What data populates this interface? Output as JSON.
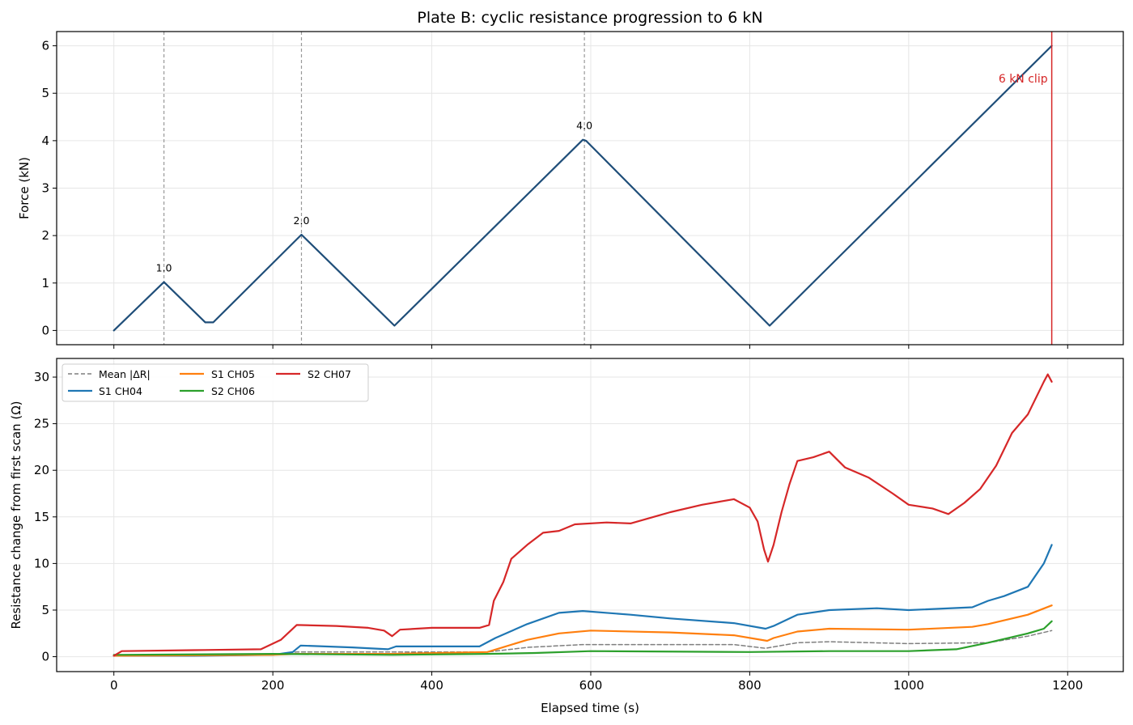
{
  "chart_data": [
    {
      "type": "line",
      "title": "Plate B: cyclic resistance progression to 6 kN",
      "xlabel": "",
      "ylabel": "Force (kN)",
      "xlim": [
        -72,
        1270
      ],
      "ylim": [
        -0.3,
        6.3
      ],
      "x_ticks": [
        0,
        200,
        400,
        600,
        800,
        1000,
        1200
      ],
      "y_ticks": [
        0,
        1,
        2,
        3,
        4,
        5,
        6
      ],
      "grid": true,
      "series": [
        {
          "color": "#1f4e79",
          "points": [
            [
              0,
              0.0
            ],
            [
              63,
              1.02
            ],
            [
              115,
              0.17
            ],
            [
              125,
              0.17
            ],
            [
              236,
              2.02
            ],
            [
              353,
              0.1
            ],
            [
              590,
              4.02
            ],
            [
              594,
              4.0
            ],
            [
              825,
              0.1
            ],
            [
              1180,
              6.0
            ]
          ]
        }
      ],
      "peaks": [
        {
          "x": 63,
          "y": 1.02,
          "label": "1.0"
        },
        {
          "x": 236,
          "y": 2.02,
          "label": "2.0"
        },
        {
          "x": 592,
          "y": 4.02,
          "label": "4.0"
        }
      ],
      "clip_marker": {
        "x": 1180,
        "label": "6 kN clip",
        "color": "#d62728"
      }
    },
    {
      "type": "line",
      "xlabel": "Elapsed time (s)",
      "ylabel": "Resistance change from first scan (Ω)",
      "xlim": [
        -72,
        1270
      ],
      "ylim": [
        -1.6,
        32.0
      ],
      "x_ticks": [
        0,
        200,
        400,
        600,
        800,
        1000,
        1200
      ],
      "y_ticks": [
        0,
        5,
        10,
        15,
        20,
        25,
        30
      ],
      "grid": true,
      "legend_position": "top-left",
      "series": [
        {
          "name": "Mean |ΔR|",
          "color": "#7f7f7f",
          "dashed": true,
          "points": [
            [
              0,
              0.1
            ],
            [
              200,
              0.2
            ],
            [
              230,
              0.5
            ],
            [
              350,
              0.5
            ],
            [
              470,
              0.5
            ],
            [
              520,
              1.0
            ],
            [
              590,
              1.3
            ],
            [
              700,
              1.3
            ],
            [
              780,
              1.3
            ],
            [
              820,
              0.9
            ],
            [
              860,
              1.5
            ],
            [
              900,
              1.6
            ],
            [
              1000,
              1.4
            ],
            [
              1100,
              1.5
            ],
            [
              1150,
              2.2
            ],
            [
              1180,
              2.8
            ]
          ]
        },
        {
          "name": "S1 CH04",
          "color": "#1f77b4",
          "points": [
            [
              0,
              0.1
            ],
            [
              100,
              0.1
            ],
            [
              200,
              0.2
            ],
            [
              225,
              0.5
            ],
            [
              235,
              1.2
            ],
            [
              300,
              1.0
            ],
            [
              345,
              0.8
            ],
            [
              355,
              1.1
            ],
            [
              460,
              1.1
            ],
            [
              480,
              2.0
            ],
            [
              520,
              3.5
            ],
            [
              560,
              4.7
            ],
            [
              590,
              4.9
            ],
            [
              650,
              4.5
            ],
            [
              700,
              4.1
            ],
            [
              780,
              3.6
            ],
            [
              820,
              3.0
            ],
            [
              830,
              3.3
            ],
            [
              860,
              4.5
            ],
            [
              900,
              5.0
            ],
            [
              960,
              5.2
            ],
            [
              1000,
              5.0
            ],
            [
              1080,
              5.3
            ],
            [
              1100,
              6.0
            ],
            [
              1120,
              6.5
            ],
            [
              1150,
              7.5
            ],
            [
              1170,
              10.0
            ],
            [
              1180,
              12.0
            ]
          ]
        },
        {
          "name": "S1 CH05",
          "color": "#ff7f0e",
          "points": [
            [
              0,
              0.1
            ],
            [
              200,
              0.2
            ],
            [
              230,
              0.3
            ],
            [
              350,
              0.3
            ],
            [
              470,
              0.5
            ],
            [
              520,
              1.8
            ],
            [
              560,
              2.5
            ],
            [
              600,
              2.8
            ],
            [
              700,
              2.6
            ],
            [
              780,
              2.3
            ],
            [
              822,
              1.7
            ],
            [
              830,
              2.0
            ],
            [
              860,
              2.7
            ],
            [
              900,
              3.0
            ],
            [
              1000,
              2.9
            ],
            [
              1080,
              3.2
            ],
            [
              1100,
              3.5
            ],
            [
              1150,
              4.5
            ],
            [
              1180,
              5.5
            ]
          ]
        },
        {
          "name": "S2 CH06",
          "color": "#2ca02c",
          "points": [
            [
              0,
              0.2
            ],
            [
              200,
              0.3
            ],
            [
              350,
              0.2
            ],
            [
              470,
              0.3
            ],
            [
              530,
              0.4
            ],
            [
              600,
              0.6
            ],
            [
              800,
              0.5
            ],
            [
              900,
              0.6
            ],
            [
              1000,
              0.6
            ],
            [
              1060,
              0.8
            ],
            [
              1100,
              1.5
            ],
            [
              1150,
              2.5
            ],
            [
              1170,
              3.0
            ],
            [
              1180,
              3.8
            ]
          ]
        },
        {
          "name": "S2 CH07",
          "color": "#d62728",
          "points": [
            [
              0,
              0.1
            ],
            [
              10,
              0.6
            ],
            [
              100,
              0.7
            ],
            [
              185,
              0.8
            ],
            [
              210,
              1.8
            ],
            [
              230,
              3.4
            ],
            [
              280,
              3.3
            ],
            [
              320,
              3.1
            ],
            [
              340,
              2.8
            ],
            [
              350,
              2.2
            ],
            [
              360,
              2.9
            ],
            [
              400,
              3.1
            ],
            [
              460,
              3.1
            ],
            [
              472,
              3.4
            ],
            [
              478,
              6.0
            ],
            [
              490,
              8.0
            ],
            [
              500,
              10.5
            ],
            [
              520,
              12.0
            ],
            [
              540,
              13.3
            ],
            [
              560,
              13.5
            ],
            [
              580,
              14.2
            ],
            [
              620,
              14.4
            ],
            [
              650,
              14.3
            ],
            [
              700,
              15.5
            ],
            [
              740,
              16.3
            ],
            [
              780,
              16.9
            ],
            [
              800,
              16.0
            ],
            [
              810,
              14.5
            ],
            [
              818,
              11.5
            ],
            [
              823,
              10.2
            ],
            [
              830,
              12.0
            ],
            [
              840,
              15.5
            ],
            [
              850,
              18.5
            ],
            [
              860,
              21.0
            ],
            [
              880,
              21.4
            ],
            [
              900,
              22.0
            ],
            [
              920,
              20.3
            ],
            [
              950,
              19.2
            ],
            [
              980,
              17.5
            ],
            [
              1000,
              16.3
            ],
            [
              1030,
              15.9
            ],
            [
              1050,
              15.3
            ],
            [
              1070,
              16.5
            ],
            [
              1090,
              18.0
            ],
            [
              1110,
              20.5
            ],
            [
              1130,
              24.0
            ],
            [
              1150,
              26.0
            ],
            [
              1170,
              29.5
            ],
            [
              1175,
              30.3
            ],
            [
              1180,
              29.5
            ]
          ]
        }
      ]
    }
  ]
}
